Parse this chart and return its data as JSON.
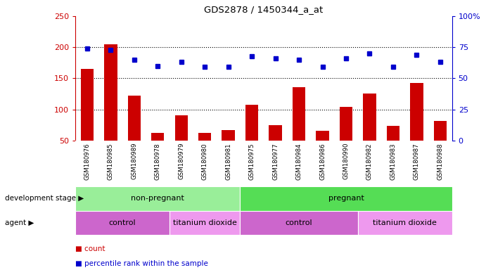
{
  "title": "GDS2878 / 1450344_a_at",
  "samples": [
    "GSM180976",
    "GSM180985",
    "GSM180989",
    "GSM180978",
    "GSM180979",
    "GSM180980",
    "GSM180981",
    "GSM180975",
    "GSM180977",
    "GSM180984",
    "GSM180986",
    "GSM180990",
    "GSM180982",
    "GSM180983",
    "GSM180987",
    "GSM180988"
  ],
  "counts": [
    165,
    205,
    122,
    62,
    90,
    62,
    67,
    107,
    74,
    136,
    66,
    104,
    126,
    73,
    142,
    81
  ],
  "percentiles": [
    74,
    73,
    65,
    60,
    63,
    59,
    59,
    68,
    66,
    65,
    59,
    66,
    70,
    59,
    69,
    63
  ],
  "bar_color": "#cc0000",
  "dot_color": "#0000cc",
  "ylim_left": [
    50,
    250
  ],
  "ylim_right": [
    0,
    100
  ],
  "yticks_left": [
    50,
    100,
    150,
    200,
    250
  ],
  "yticks_right": [
    0,
    25,
    50,
    75,
    100
  ],
  "yticklabels_right": [
    "0",
    "25",
    "50",
    "75",
    "100%"
  ],
  "grid_values": [
    100,
    150,
    200
  ],
  "plot_bg": "#ffffff",
  "xticklabel_bg": "#d0d0d0",
  "development_stage_groups": [
    {
      "label": "non-pregnant",
      "start": 0,
      "end": 7,
      "color": "#99ee99"
    },
    {
      "label": "pregnant",
      "start": 7,
      "end": 16,
      "color": "#55dd55"
    }
  ],
  "agent_groups": [
    {
      "label": "control",
      "start": 0,
      "end": 4,
      "color": "#cc66cc"
    },
    {
      "label": "titanium dioxide",
      "start": 4,
      "end": 7,
      "color": "#ee99ee"
    },
    {
      "label": "control",
      "start": 7,
      "end": 12,
      "color": "#cc66cc"
    },
    {
      "label": "titanium dioxide",
      "start": 12,
      "end": 16,
      "color": "#ee99ee"
    }
  ],
  "left_axis_color": "#cc0000",
  "right_axis_color": "#0000cc",
  "dev_stage_label": "development stage ▶",
  "agent_label": "agent ▶",
  "legend_items": [
    {
      "marker": "s",
      "color": "#cc0000",
      "label": "count"
    },
    {
      "marker": "s",
      "color": "#0000cc",
      "label": "percentile rank within the sample"
    }
  ]
}
